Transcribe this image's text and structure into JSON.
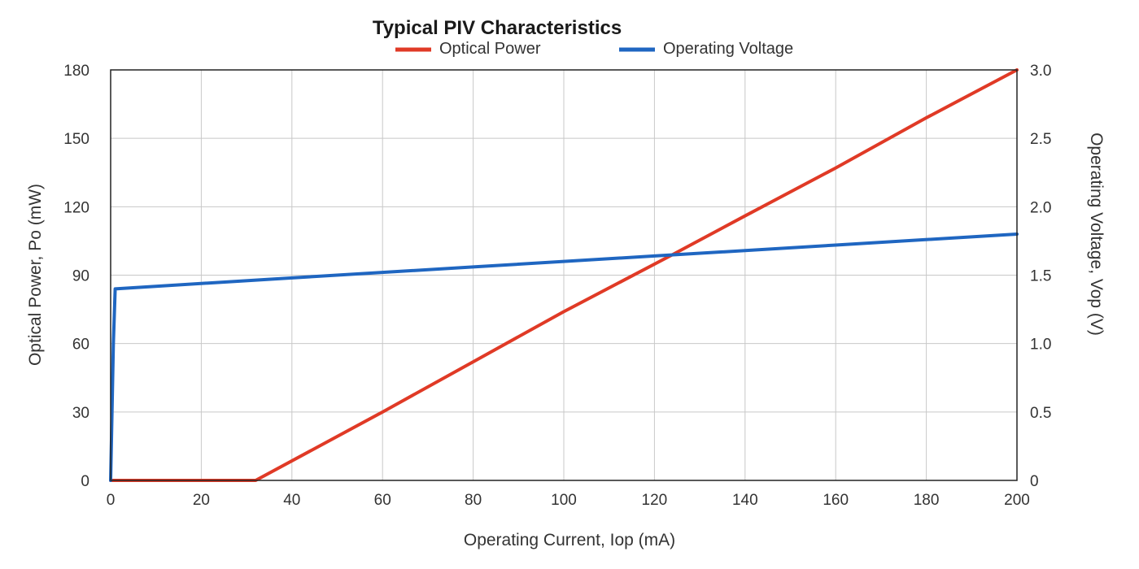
{
  "chart_data": {
    "type": "line",
    "title": "Typical PIV Characteristics",
    "xlabel": "Operating Current, Iop (mA)",
    "ylabel": "Optical Power, Po (mW)",
    "y2label": "Operating Voltage, Vop (V)",
    "xlim": [
      0,
      200
    ],
    "ylim": [
      0,
      180
    ],
    "y2lim": [
      0,
      3.0
    ],
    "x_ticks": [
      "0",
      "20",
      "40",
      "60",
      "80",
      "100",
      "120",
      "140",
      "160",
      "180",
      "200"
    ],
    "y_ticks": [
      "0",
      "30",
      "60",
      "90",
      "120",
      "150",
      "180"
    ],
    "y2_ticks": [
      "0",
      "0.5",
      "1.0",
      "1.5",
      "2.0",
      "2.5",
      "3.0"
    ],
    "grid": true,
    "legend_position": "top",
    "series": [
      {
        "name": "Optical Power",
        "axis": "left",
        "color": "#e03a26",
        "x": [
          0,
          32,
          60,
          80,
          100,
          124,
          140,
          160,
          180,
          200
        ],
        "y": [
          0,
          0,
          30,
          52,
          74,
          99,
          116,
          137,
          159,
          180
        ]
      },
      {
        "name": "Operating Voltage",
        "axis": "right",
        "color": "#1f66c1",
        "x": [
          0,
          0.3,
          0.6,
          1,
          40,
          80,
          120,
          160,
          200
        ],
        "y": [
          0,
          0.5,
          1.0,
          1.4,
          1.48,
          1.56,
          1.64,
          1.72,
          1.8
        ]
      }
    ]
  }
}
